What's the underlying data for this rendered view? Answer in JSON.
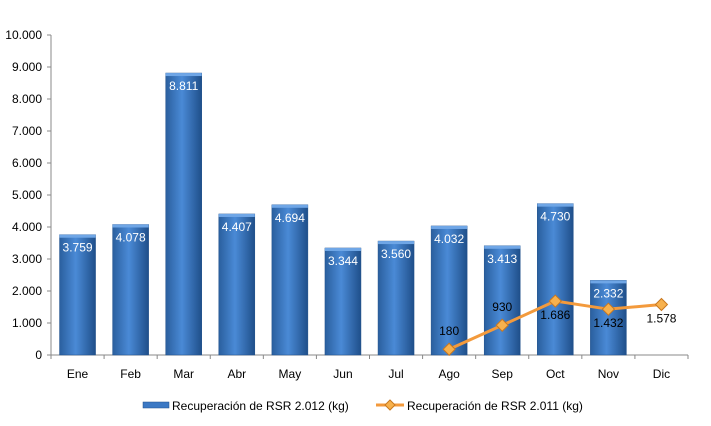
{
  "chart_data": {
    "type": "bar",
    "categories": [
      "Ene",
      "Feb",
      "Mar",
      "Abr",
      "May",
      "Jun",
      "Jul",
      "Ago",
      "Sep",
      "Oct",
      "Nov",
      "Dic"
    ],
    "series": [
      {
        "name": "Recuperación de RSR 2.012 (kg)",
        "type": "bar",
        "color": "#3b78c4",
        "values": [
          3759,
          4078,
          8811,
          4407,
          4694,
          3344,
          3560,
          4032,
          3413,
          4730,
          2332,
          null
        ],
        "labels": [
          "3.759",
          "4.078",
          "8.811",
          "4.407",
          "4.694",
          "3.344",
          "3.560",
          "4.032",
          "3.413",
          "4.730",
          "2.332",
          ""
        ]
      },
      {
        "name": "Recuperación de RSR 2.011 (kg)",
        "type": "line",
        "color": "#f39a3c",
        "values": [
          null,
          null,
          null,
          null,
          null,
          null,
          null,
          180,
          930,
          1686,
          1432,
          1578
        ],
        "labels": [
          "",
          "",
          "",
          "",
          "",
          "",
          "",
          "180",
          "930",
          "1.686",
          "1.432",
          "1.578"
        ]
      }
    ],
    "ylim": [
      0,
      10000
    ],
    "yticks": [
      "0",
      "1.000",
      "2.000",
      "3.000",
      "4.000",
      "5.000",
      "6.000",
      "7.000",
      "8.000",
      "9.000",
      "10.000"
    ],
    "grid": false,
    "legend": "bottom"
  }
}
